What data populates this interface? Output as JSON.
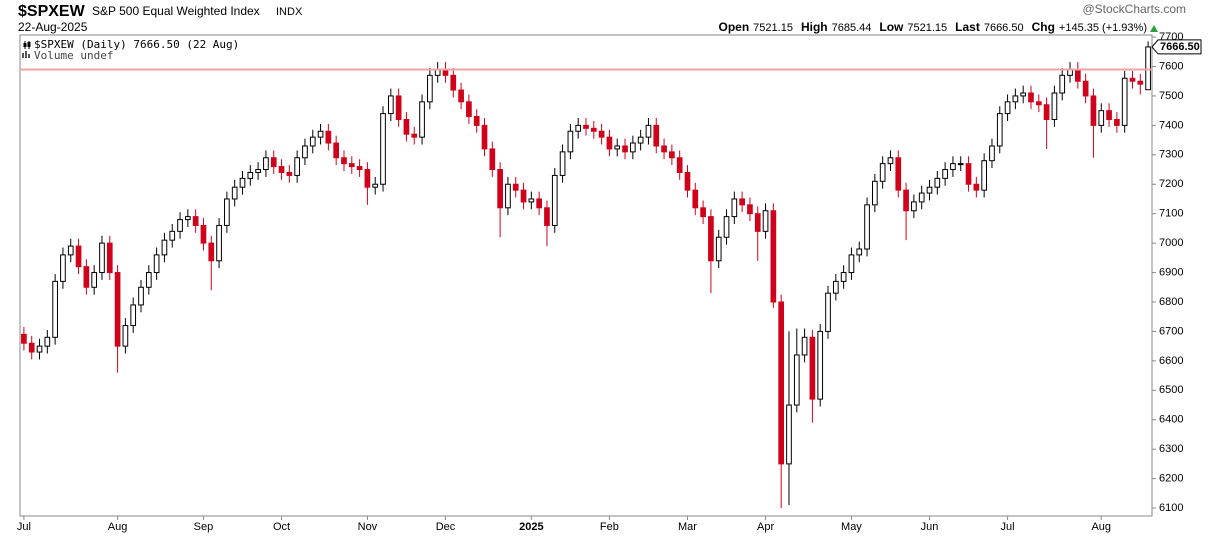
{
  "chart_data": {
    "type": "candlestick",
    "symbol": "$SPXEW",
    "title": "S&P 500 Equal Weighted Index",
    "exchange": "INDX",
    "date": "22-Aug-2025",
    "source": "@StockCharts.com",
    "quote_summary": [
      {
        "label": "Open",
        "value": "7521.15"
      },
      {
        "label": "High",
        "value": "7685.44"
      },
      {
        "label": "Low",
        "value": "7521.15"
      },
      {
        "label": "Last",
        "value": "7666.50"
      },
      {
        "label": "Chg",
        "value": "+145.35 (+1.93%)"
      }
    ],
    "volume_note": "Volume undef",
    "categories": [
      "Jul",
      null,
      null,
      null,
      null,
      null,
      null,
      null,
      null,
      null,
      null,
      null,
      "Aug",
      null,
      null,
      null,
      null,
      null,
      null,
      null,
      null,
      null,
      null,
      "Sep",
      null,
      null,
      null,
      null,
      null,
      null,
      null,
      null,
      null,
      "Oct",
      null,
      null,
      null,
      null,
      null,
      null,
      null,
      null,
      null,
      null,
      "Nov",
      null,
      null,
      null,
      null,
      null,
      null,
      null,
      null,
      null,
      "Dec",
      null,
      null,
      null,
      null,
      null,
      null,
      null,
      null,
      null,
      null,
      "2025",
      null,
      null,
      null,
      null,
      null,
      null,
      null,
      null,
      null,
      "Feb",
      null,
      null,
      null,
      null,
      null,
      null,
      null,
      null,
      null,
      "Mar",
      null,
      null,
      null,
      null,
      null,
      null,
      null,
      null,
      null,
      "Apr",
      null,
      null,
      null,
      null,
      null,
      null,
      null,
      null,
      null,
      null,
      "May",
      null,
      null,
      null,
      null,
      null,
      null,
      null,
      null,
      null,
      "Jun",
      null,
      null,
      null,
      null,
      null,
      null,
      null,
      null,
      null,
      "Jul",
      null,
      null,
      null,
      null,
      null,
      null,
      null,
      null,
      null,
      null,
      null,
      "Aug",
      null,
      null,
      null,
      null,
      null,
      null
    ],
    "series": [
      {
        "name": "$SPXEW (Daily) 7666.50 (22 Aug)",
        "up_color": "#000000",
        "down_color": "#d0021b",
        "hollow_up": true,
        "open": [
          6690,
          6660,
          6630,
          6650,
          6680,
          6870,
          6960,
          6990,
          6920,
          6850,
          6900,
          7000,
          6900,
          6650,
          6720,
          6790,
          6850,
          6900,
          6960,
          7010,
          7040,
          7080,
          7090,
          7060,
          7000,
          6940,
          7060,
          7150,
          7190,
          7220,
          7240,
          7250,
          7290,
          7260,
          7240,
          7230,
          7290,
          7330,
          7360,
          7380,
          7340,
          7290,
          7270,
          7260,
          7250,
          7190,
          7200,
          7440,
          7500,
          7420,
          7370,
          7360,
          7480,
          7570,
          7590,
          7570,
          7520,
          7480,
          7430,
          7400,
          7320,
          7250,
          7120,
          7200,
          7180,
          7140,
          7150,
          7120,
          7060,
          7230,
          7310,
          7380,
          7400,
          7390,
          7380,
          7360,
          7320,
          7330,
          7310,
          7340,
          7360,
          7400,
          7330,
          7310,
          7290,
          7240,
          7180,
          7120,
          7090,
          6940,
          7020,
          7090,
          7150,
          7130,
          7100,
          7040,
          7110,
          6800,
          6250,
          6450,
          6620,
          6680,
          6470,
          6700,
          6830,
          6870,
          6900,
          6960,
          6980,
          7130,
          7210,
          7270,
          7290,
          7180,
          7110,
          7140,
          7170,
          7190,
          7220,
          7250,
          7270,
          7270,
          7200,
          7180,
          7280,
          7330,
          7440,
          7480,
          7500,
          7510,
          7480,
          7470,
          7420,
          7510,
          7570,
          7590,
          7550,
          7500,
          7400,
          7450,
          7420,
          7400,
          7560,
          7550,
          7521.15
        ],
        "high": [
          6715,
          6685,
          6675,
          6705,
          6895,
          6985,
          7015,
          7015,
          6945,
          6925,
          7025,
          7025,
          6925,
          6745,
          6815,
          6875,
          6925,
          6985,
          7035,
          7065,
          7105,
          7115,
          7115,
          7085,
          7025,
          7085,
          7175,
          7215,
          7245,
          7265,
          7275,
          7315,
          7315,
          7285,
          7265,
          7315,
          7355,
          7385,
          7405,
          7405,
          7365,
          7315,
          7295,
          7285,
          7275,
          7225,
          7465,
          7525,
          7525,
          7445,
          7395,
          7505,
          7595,
          7615,
          7615,
          7595,
          7545,
          7505,
          7455,
          7425,
          7345,
          7275,
          7225,
          7225,
          7205,
          7175,
          7175,
          7145,
          7255,
          7335,
          7405,
          7425,
          7425,
          7415,
          7405,
          7385,
          7355,
          7355,
          7365,
          7385,
          7425,
          7425,
          7355,
          7335,
          7315,
          7265,
          7205,
          7145,
          7115,
          7045,
          7115,
          7175,
          7175,
          7155,
          7125,
          7135,
          7135,
          6825,
          6700,
          6710,
          6710,
          6705,
          6725,
          6855,
          6895,
          6925,
          6985,
          7005,
          7155,
          7235,
          7295,
          7315,
          7315,
          7205,
          7165,
          7195,
          7215,
          7245,
          7275,
          7295,
          7295,
          7295,
          7225,
          7305,
          7355,
          7465,
          7505,
          7525,
          7535,
          7535,
          7505,
          7495,
          7535,
          7595,
          7615,
          7615,
          7575,
          7525,
          7475,
          7475,
          7445,
          7585,
          7585,
          7575,
          7685.44
        ],
        "low": [
          6635,
          6605,
          6605,
          6625,
          6655,
          6845,
          6935,
          6895,
          6825,
          6825,
          6875,
          6875,
          6560,
          6625,
          6695,
          6765,
          6825,
          6875,
          6935,
          6985,
          7015,
          7055,
          7035,
          6975,
          6840,
          6915,
          7035,
          7125,
          7165,
          7195,
          7215,
          7225,
          7235,
          7215,
          7205,
          7205,
          7265,
          7305,
          7335,
          7315,
          7265,
          7245,
          7235,
          7225,
          7130,
          7165,
          7175,
          7415,
          7395,
          7345,
          7335,
          7335,
          7455,
          7545,
          7545,
          7495,
          7455,
          7405,
          7375,
          7295,
          7225,
          7020,
          7095,
          7155,
          7115,
          7115,
          7095,
          6990,
          7035,
          7205,
          7285,
          7355,
          7365,
          7355,
          7335,
          7295,
          7295,
          7285,
          7285,
          7315,
          7335,
          7305,
          7285,
          7265,
          7215,
          7155,
          7095,
          7065,
          6830,
          6915,
          6995,
          7065,
          7105,
          7075,
          6940,
          7015,
          6780,
          6100,
          6110,
          6425,
          6595,
          6390,
          6445,
          6675,
          6805,
          6845,
          6875,
          6935,
          6955,
          7105,
          7185,
          7245,
          7155,
          7010,
          7085,
          7115,
          7145,
          7165,
          7195,
          7225,
          7245,
          7175,
          7155,
          7155,
          7255,
          7305,
          7415,
          7455,
          7475,
          7455,
          7445,
          7320,
          7395,
          7485,
          7545,
          7525,
          7475,
          7290,
          7375,
          7395,
          7375,
          7375,
          7525,
          7505,
          7521.15
        ],
        "close": [
          6660,
          6630,
          6650,
          6680,
          6870,
          6960,
          6990,
          6920,
          6850,
          6900,
          7000,
          6900,
          6650,
          6720,
          6790,
          6850,
          6900,
          6960,
          7010,
          7040,
          7080,
          7090,
          7060,
          7000,
          6940,
          7060,
          7150,
          7190,
          7220,
          7240,
          7250,
          7290,
          7260,
          7240,
          7230,
          7290,
          7330,
          7360,
          7380,
          7340,
          7290,
          7270,
          7260,
          7250,
          7190,
          7200,
          7440,
          7500,
          7420,
          7370,
          7360,
          7480,
          7570,
          7590,
          7570,
          7520,
          7480,
          7430,
          7400,
          7320,
          7250,
          7120,
          7200,
          7180,
          7140,
          7150,
          7120,
          7060,
          7230,
          7310,
          7380,
          7400,
          7390,
          7380,
          7360,
          7320,
          7330,
          7310,
          7340,
          7360,
          7400,
          7330,
          7310,
          7290,
          7240,
          7180,
          7120,
          7090,
          6940,
          7020,
          7090,
          7150,
          7130,
          7100,
          7040,
          7110,
          6800,
          6250,
          6450,
          6620,
          6680,
          6470,
          6700,
          6830,
          6870,
          6900,
          6960,
          6980,
          7130,
          7210,
          7270,
          7290,
          7180,
          7110,
          7140,
          7170,
          7190,
          7220,
          7250,
          7270,
          7270,
          7200,
          7180,
          7280,
          7330,
          7440,
          7480,
          7500,
          7510,
          7480,
          7470,
          7420,
          7510,
          7570,
          7590,
          7550,
          7500,
          7400,
          7450,
          7420,
          7400,
          7560,
          7550,
          7540,
          7666.5
        ],
        "last_value": 7666.5,
        "last_label": "7666.50"
      }
    ],
    "reference_line": {
      "value": 7590,
      "color": "#f2a3a3"
    },
    "ylim": [
      6073,
      7707
    ],
    "yticks": [
      6100,
      6200,
      6300,
      6400,
      6500,
      6600,
      6700,
      6800,
      6900,
      7000,
      7100,
      7200,
      7300,
      7400,
      7500,
      7600,
      7700
    ],
    "grid": false
  }
}
